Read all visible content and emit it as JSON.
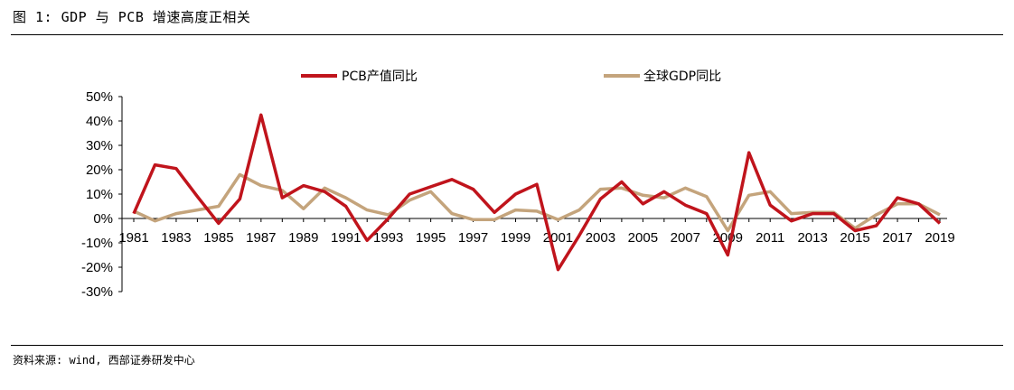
{
  "figure_title": "图 1: GDP 与 PCB 增速高度正相关",
  "source_note": "资料来源: wind, 西部证券研发中心",
  "chart_data": {
    "type": "line",
    "title": "",
    "xlabel": "",
    "ylabel": "",
    "x": [
      1981,
      1982,
      1983,
      1984,
      1985,
      1986,
      1987,
      1988,
      1989,
      1990,
      1991,
      1992,
      1993,
      1994,
      1995,
      1996,
      1997,
      1998,
      1999,
      2000,
      2001,
      2002,
      2003,
      2004,
      2005,
      2006,
      2007,
      2008,
      2009,
      2010,
      2011,
      2012,
      2013,
      2014,
      2015,
      2016,
      2017,
      2018,
      2019
    ],
    "x_tick_labels": [
      "1981",
      "1983",
      "1985",
      "1987",
      "1989",
      "1991",
      "1993",
      "1995",
      "1997",
      "1999",
      "2001",
      "2003",
      "2005",
      "2007",
      "2009",
      "2011",
      "2013",
      "2015",
      "2017",
      "2019"
    ],
    "ylim": [
      -30,
      50
    ],
    "y_ticks": [
      50,
      40,
      30,
      20,
      10,
      0,
      -10,
      -20,
      -30
    ],
    "y_tick_labels": [
      "50%",
      "40%",
      "30%",
      "20%",
      "10%",
      "0%",
      "-10%",
      "-20%",
      "-30%"
    ],
    "grid": false,
    "legend_position": "top-center",
    "series": [
      {
        "name": "PCB产值同比",
        "color": "#C0141C",
        "values": [
          2,
          22,
          20.5,
          9,
          -2,
          8,
          42.5,
          8.5,
          13.5,
          11,
          5,
          -9,
          0,
          10,
          13,
          16,
          12,
          2.5,
          10,
          14,
          -21,
          -7,
          8,
          15,
          6,
          11,
          5.5,
          2,
          -15,
          27,
          5.5,
          -1,
          2,
          2,
          -5,
          -3,
          8.5,
          6,
          -2
        ]
      },
      {
        "name": "全球GDP同比",
        "color": "#C4A47C",
        "values": [
          3,
          -1,
          2,
          3.5,
          5,
          18,
          13.5,
          11.5,
          4,
          12.5,
          8.5,
          3.5,
          1.5,
          7.5,
          11,
          2,
          -0.5,
          -0.5,
          3.5,
          3,
          -0.5,
          3.5,
          12,
          12.5,
          9.5,
          8.5,
          12.5,
          9,
          -5,
          9.5,
          11,
          2,
          2.5,
          2.5,
          -4,
          1.5,
          6,
          6,
          1.5
        ]
      }
    ]
  }
}
